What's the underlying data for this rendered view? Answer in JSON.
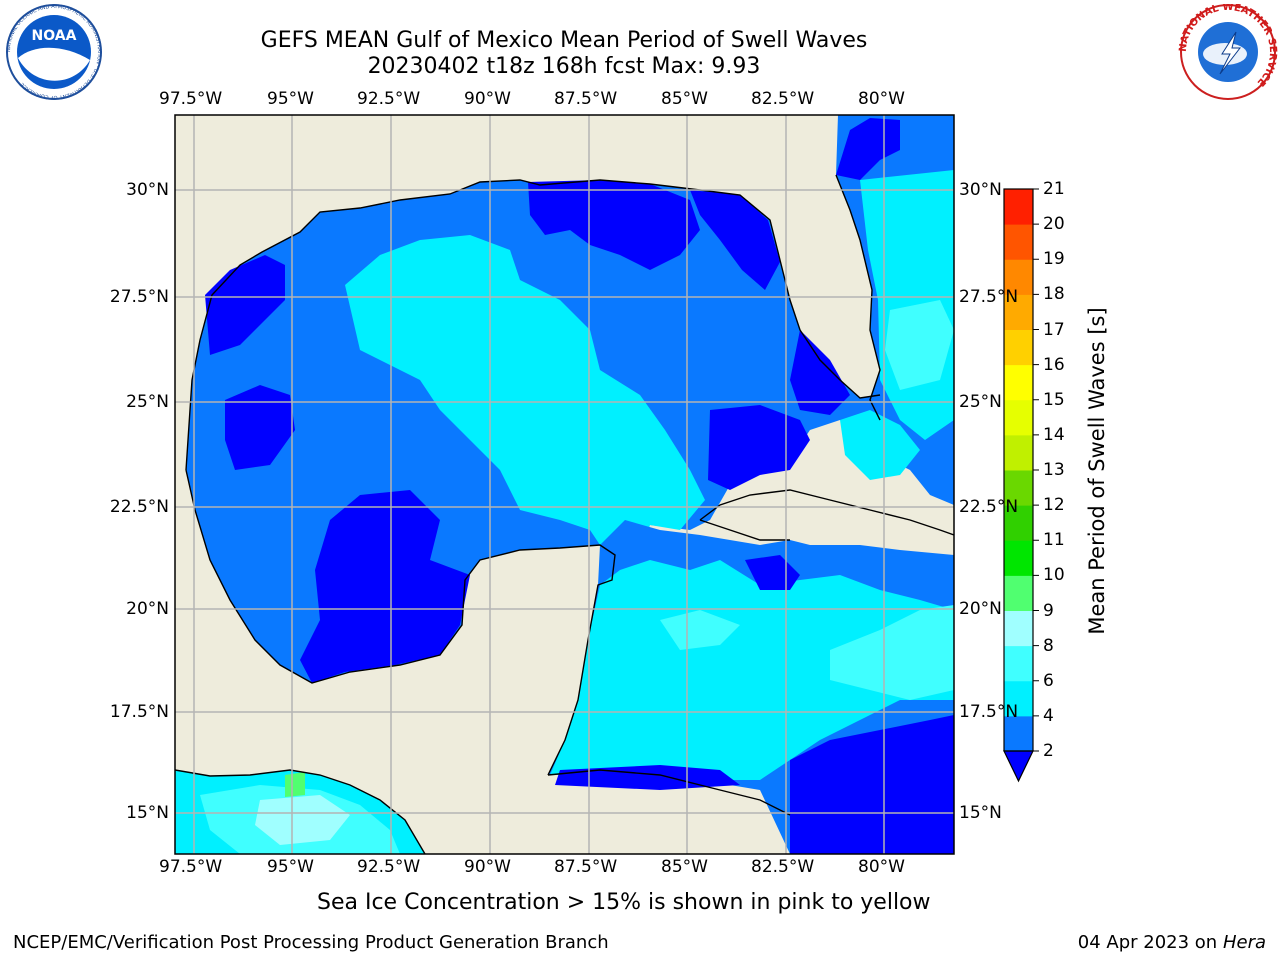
{
  "title": {
    "line1": "GEFS MEAN Gulf of Mexico Mean Period of Swell Waves",
    "line2": "20230402 t18z 168h fcst   Max: 9.93"
  },
  "map": {
    "lon_ticks": [
      "97.5°W",
      "95°W",
      "92.5°W",
      "90°W",
      "87.5°W",
      "85°W",
      "82.5°W",
      "80°W"
    ],
    "lat_ticks": [
      "30°N",
      "27.5°N",
      "25°N",
      "22.5°N",
      "20°N",
      "17.5°N",
      "15°N"
    ],
    "lon_range": [
      -98,
      -78
    ],
    "lat_range": [
      14,
      32
    ]
  },
  "colorbar": {
    "label": "Mean Period of Swell Waves [s]",
    "ticks": [
      "2",
      "4",
      "6",
      "8",
      "9",
      "10",
      "11",
      "12",
      "13",
      "14",
      "15",
      "16",
      "17",
      "18",
      "19",
      "20",
      "21"
    ],
    "colors": [
      "#0a79ff",
      "#00f0ff",
      "#40ffff",
      "#a0ffff",
      "#50ff70",
      "#00e600",
      "#30d000",
      "#6ad800",
      "#c0f000",
      "#e6ff00",
      "#ffff00",
      "#ffd000",
      "#ffaa00",
      "#ff8800",
      "#ff5500",
      "#ff2000"
    ],
    "under_color": "#0000ff"
  },
  "colors": {
    "land": "#eeecdc",
    "ocean_2_4": "#0a79ff",
    "ocean_under_2": "#0000ff",
    "ocean_4_6": "#00f0ff",
    "ocean_6_8": "#40ffff",
    "ocean_8_9": "#a0ffff"
  },
  "note": "Sea Ice Concentration > 15% is shown in pink to yellow",
  "footer": {
    "left": "NCEP/EMC/Verification Post Processing Product Generation Branch",
    "right_date": "04 Apr 2023 on ",
    "right_host": "Hera"
  },
  "logos": {
    "noaa": "NOAA",
    "noaa_ring": "NATIONAL OCEANIC AND ATMOSPHERIC ADMINISTRATION · U.S. DEPARTMENT OF COMMERCE",
    "nws_ring": "NATIONAL WEATHER SERVICE"
  }
}
